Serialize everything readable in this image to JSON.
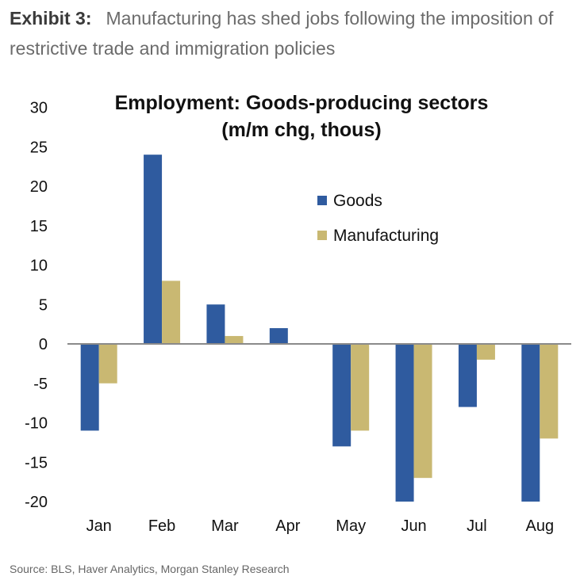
{
  "header": {
    "exhibit": "Exhibit 3:",
    "title": "Manufacturing has shed jobs following the imposition of restrictive trade and immigration policies"
  },
  "source": "Source: BLS, Haver Analytics, Morgan Stanley Research",
  "chart_data": {
    "type": "bar",
    "title": [
      "Employment: Goods-producing sectors",
      "(m/m chg, thous)"
    ],
    "categories": [
      "Jan",
      "Feb",
      "Mar",
      "Apr",
      "May",
      "Jun",
      "Jul",
      "Aug"
    ],
    "series": [
      {
        "name": "Goods",
        "color": "#2f5b9f",
        "values": [
          -11,
          24,
          5,
          2,
          -13,
          -20,
          -8,
          -20
        ]
      },
      {
        "name": "Manufacturing",
        "color": "#c9b872",
        "values": [
          -5,
          8,
          1,
          0,
          -11,
          -17,
          -2,
          -12
        ]
      }
    ],
    "yticks": [
      30,
      25,
      20,
      15,
      10,
      5,
      0,
      -5,
      -10,
      -15,
      -20
    ],
    "ylim": [
      -20,
      30
    ],
    "xlabel": "",
    "ylabel": "",
    "grid": false,
    "legend": "upper-right"
  }
}
